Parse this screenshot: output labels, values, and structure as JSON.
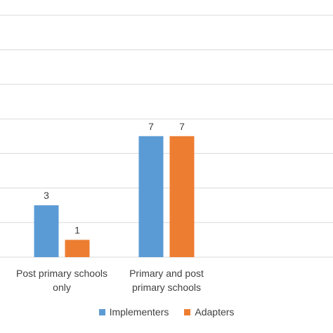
{
  "chart_data": {
    "type": "bar",
    "categories": [
      "Post primary schools only",
      "Primary and post primary schools"
    ],
    "category_lines": [
      [
        "Post primary schools",
        "only"
      ],
      [
        "Primary and post",
        "primary schools"
      ]
    ],
    "series": [
      {
        "name": "Implementers",
        "values": [
          3,
          7
        ],
        "color": "#5b9bd5"
      },
      {
        "name": "Adapters",
        "values": [
          1,
          7
        ],
        "color": "#ed7d31"
      }
    ],
    "title": "",
    "xlabel": "",
    "ylabel": "",
    "ylim": [
      0,
      14
    ],
    "grid": true,
    "legend_position": "bottom"
  }
}
